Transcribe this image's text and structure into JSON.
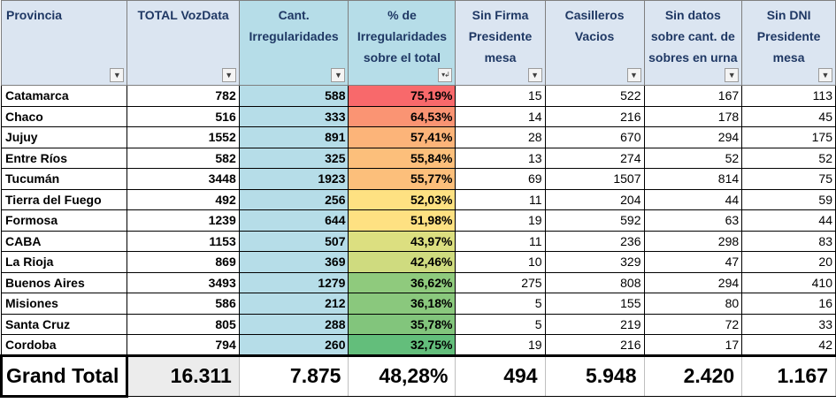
{
  "headers": [
    {
      "label": "Provincia"
    },
    {
      "label": "TOTAL VozData"
    },
    {
      "label": "Cant. Irregularidades"
    },
    {
      "label": "% de Irregularidades sobre el total"
    },
    {
      "label": "Sin Firma Presidente mesa"
    },
    {
      "label": "Casilleros Vacios"
    },
    {
      "label": "Sin datos sobre cant. de sobres en urna"
    },
    {
      "label": "Sin DNI Presidente mesa"
    }
  ],
  "filter_icons": [
    "dropdown-arrow-icon",
    "dropdown-arrow-icon",
    "dropdown-arrow-icon",
    "sort-descending-filter-icon",
    "dropdown-arrow-icon",
    "dropdown-arrow-icon",
    "dropdown-arrow-icon",
    "dropdown-arrow-icon"
  ],
  "rows": [
    [
      "Catamarca",
      "782",
      "588",
      "75,19%",
      "15",
      "522",
      "167",
      "113"
    ],
    [
      "Chaco",
      "516",
      "333",
      "64,53%",
      "14",
      "216",
      "178",
      "45"
    ],
    [
      "Jujuy",
      "1552",
      "891",
      "57,41%",
      "28",
      "670",
      "294",
      "175"
    ],
    [
      "Entre Ríos",
      "582",
      "325",
      "55,84%",
      "13",
      "274",
      "52",
      "52"
    ],
    [
      "Tucumán",
      "3448",
      "1923",
      "55,77%",
      "69",
      "1507",
      "814",
      "75"
    ],
    [
      "Tierra del Fuego",
      "492",
      "256",
      "52,03%",
      "11",
      "204",
      "44",
      "59"
    ],
    [
      "Formosa",
      "1239",
      "644",
      "51,98%",
      "19",
      "592",
      "63",
      "44"
    ],
    [
      "CABA",
      "1153",
      "507",
      "43,97%",
      "11",
      "236",
      "298",
      "83"
    ],
    [
      "La Rioja",
      "869",
      "369",
      "42,46%",
      "10",
      "329",
      "47",
      "20"
    ],
    [
      "Buenos Aires",
      "3493",
      "1279",
      "36,62%",
      "275",
      "808",
      "294",
      "410"
    ],
    [
      "Misiones",
      "586",
      "212",
      "36,18%",
      "5",
      "155",
      "80",
      "16"
    ],
    [
      "Santa Cruz",
      "805",
      "288",
      "35,78%",
      "5",
      "219",
      "72",
      "33"
    ],
    [
      "Cordoba",
      "794",
      "260",
      "32,75%",
      "19",
      "216",
      "17",
      "42"
    ]
  ],
  "pct_colors": [
    "#f8696b",
    "#fa9473",
    "#fcb479",
    "#fcbf7b",
    "#fcbf7b",
    "#fee182",
    "#fee182",
    "#dcdf80",
    "#cfdb7f",
    "#8fca7d",
    "#8ac87d",
    "#82c57c",
    "#63be7b"
  ],
  "total": [
    "Grand Total",
    "16.311",
    "7.875",
    "48,28%",
    "494",
    "5.948",
    "2.420",
    "1.167"
  ]
}
